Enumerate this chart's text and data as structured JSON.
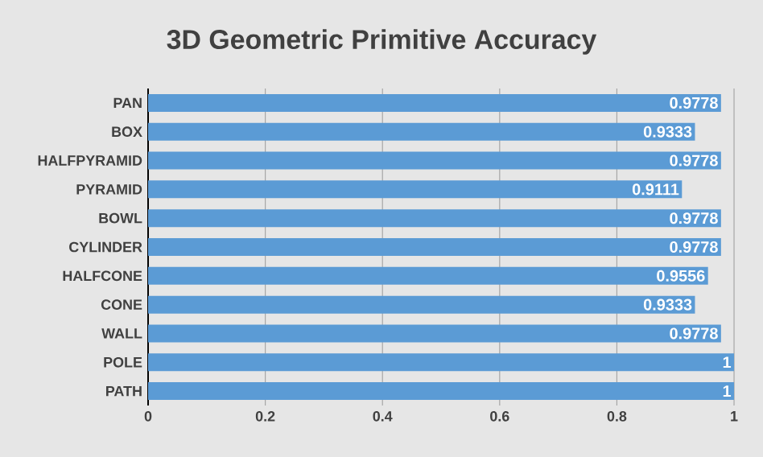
{
  "chart_data": {
    "type": "bar",
    "orientation": "horizontal",
    "title": "3D Geometric Primitive Accuracy",
    "categories": [
      "PAN",
      "BOX",
      "HALFPYRAMID",
      "PYRAMID",
      "BOWL",
      "CYLINDER",
      "HALFCONE",
      "CONE",
      "WALL",
      "POLE",
      "PATH"
    ],
    "values": [
      0.9778,
      0.9333,
      0.9778,
      0.9111,
      0.9778,
      0.9778,
      0.9556,
      0.9333,
      0.9778,
      1,
      1
    ],
    "color": "#5b9bd5",
    "data_labels": true,
    "grid": "x",
    "xlim": [
      0,
      1
    ],
    "xticks": [
      0,
      0.2,
      0.4,
      0.6,
      0.8,
      1
    ]
  }
}
